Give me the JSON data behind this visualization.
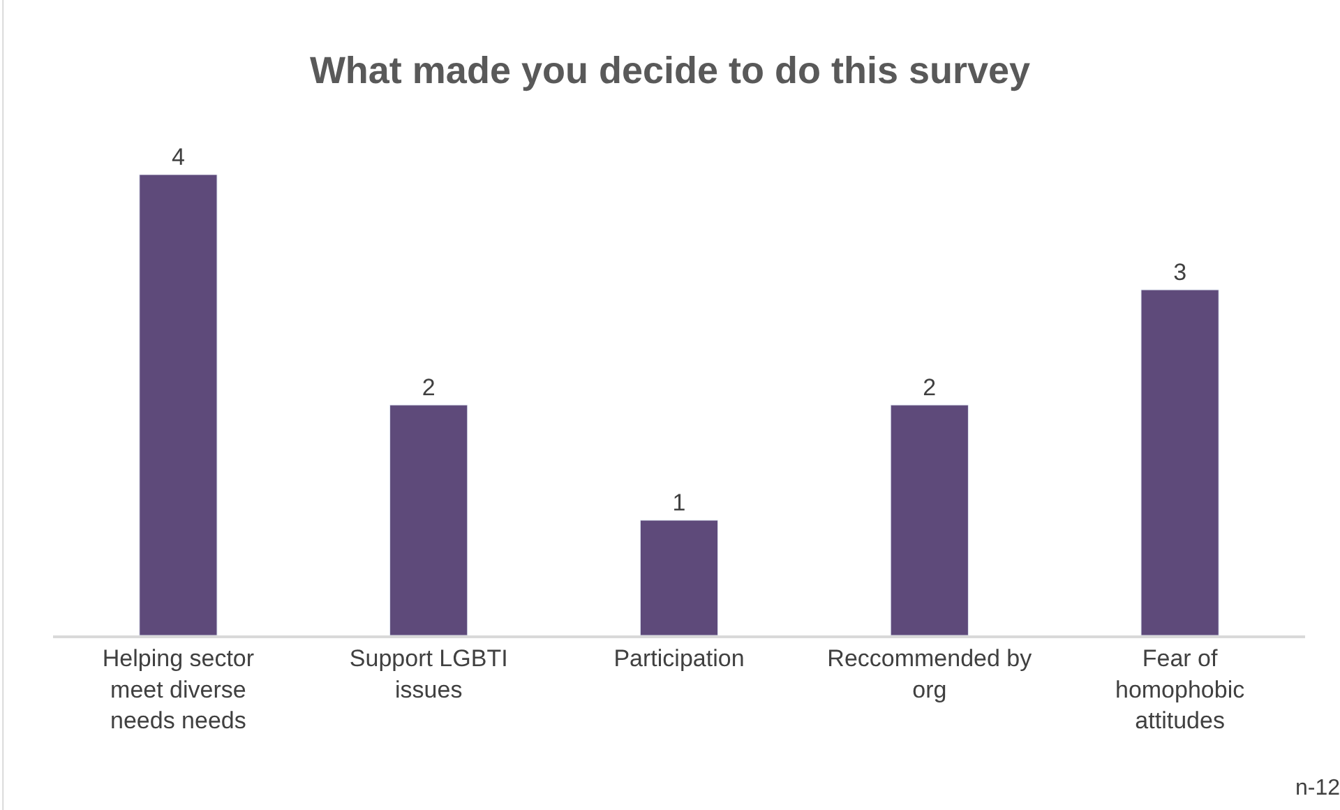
{
  "chart_data": {
    "type": "bar",
    "title": "What made you decide to do this survey",
    "categories": [
      "Helping sector meet diverse needs needs",
      "Support LGBTI issues",
      "Participation",
      "Reccommended by org",
      "Fear of homophobic attitudes"
    ],
    "values": [
      4,
      2,
      1,
      2,
      3
    ],
    "color": "#5e4a7a",
    "data_labels": true,
    "annotations": [
      "n-12"
    ]
  }
}
